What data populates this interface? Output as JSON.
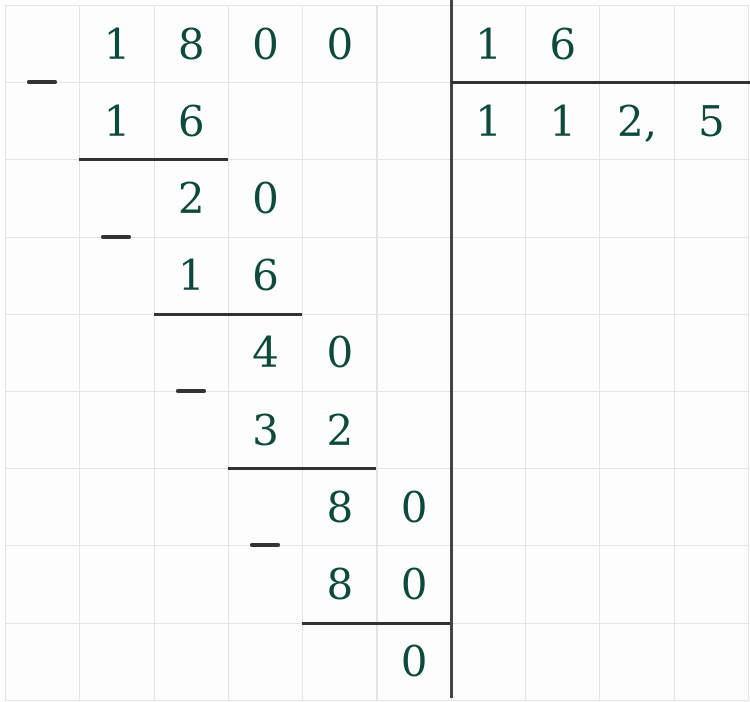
{
  "division": {
    "dividend": "1800",
    "divisor": "16",
    "quotient": "112,5",
    "digit_color": "#0e4a3c",
    "grid": [
      [
        "",
        "1",
        "8",
        "0",
        "0",
        "",
        "1",
        "6",
        "",
        ""
      ],
      [
        "",
        "1",
        "6",
        "",
        "",
        "",
        "1",
        "1",
        "2,",
        "5"
      ],
      [
        "",
        "",
        "2",
        "0",
        "",
        "",
        "",
        "",
        "",
        ""
      ],
      [
        "",
        "",
        "1",
        "6",
        "",
        "",
        "",
        "",
        "",
        ""
      ],
      [
        "",
        "",
        "",
        "4",
        "0",
        "",
        "",
        "",
        "",
        ""
      ],
      [
        "",
        "",
        "",
        "3",
        "2",
        "",
        "",
        "",
        "",
        ""
      ],
      [
        "",
        "",
        "",
        "",
        "8",
        "0",
        "",
        "",
        "",
        ""
      ],
      [
        "",
        "",
        "",
        "",
        "8",
        "0",
        "",
        "",
        "",
        ""
      ],
      [
        "",
        "",
        "",
        "",
        "",
        "0",
        "",
        "",
        "",
        ""
      ]
    ],
    "minus_sign": "−"
  }
}
